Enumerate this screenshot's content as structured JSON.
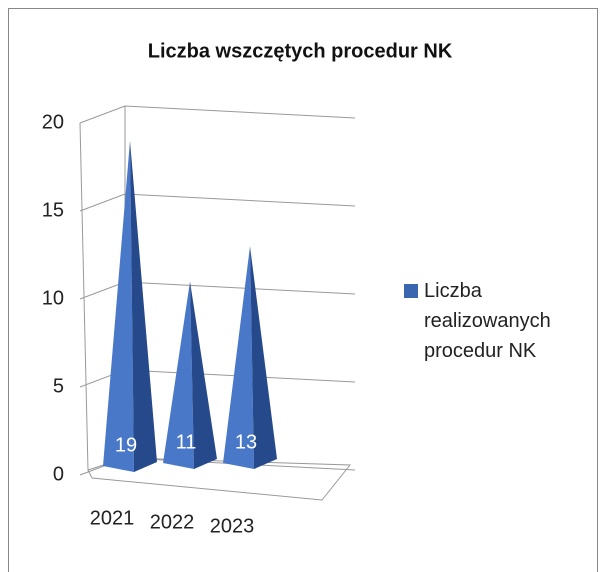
{
  "chart_data": {
    "type": "pyramid",
    "title": "Liczba wszczętych  procedur NK",
    "categories": [
      "2021",
      "2022",
      "2023"
    ],
    "series": [
      {
        "name": "Liczba realizowanych procedur NK",
        "color": "#3a66b0",
        "values": [
          19,
          11,
          13
        ]
      }
    ],
    "ylim": [
      0,
      20
    ],
    "yticks": [
      0,
      5,
      10,
      15,
      20
    ],
    "grid": true,
    "legend": "right"
  }
}
